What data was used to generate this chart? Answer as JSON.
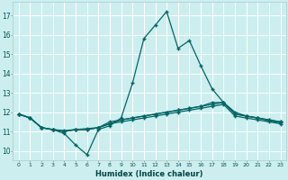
{
  "title": "",
  "xlabel": "Humidex (Indice chaleur)",
  "bg_color": "#cceeee",
  "line_color": "#006666",
  "grid_color": "#ffffff",
  "xlim": [
    -0.5,
    23.5
  ],
  "ylim": [
    9.5,
    17.7
  ],
  "xticks": [
    0,
    1,
    2,
    3,
    4,
    5,
    6,
    7,
    8,
    9,
    10,
    11,
    12,
    13,
    14,
    15,
    16,
    17,
    18,
    19,
    20,
    21,
    22,
    23
  ],
  "yticks": [
    10,
    11,
    12,
    13,
    14,
    15,
    16,
    17
  ],
  "series": [
    [
      11.9,
      11.7,
      11.2,
      11.1,
      10.9,
      10.3,
      9.8,
      11.1,
      11.3,
      11.7,
      13.5,
      15.8,
      16.5,
      17.2,
      15.3,
      15.7,
      14.4,
      13.2,
      12.5,
      11.9,
      11.8,
      11.7,
      11.6,
      11.5
    ],
    [
      11.9,
      11.7,
      11.2,
      11.1,
      11.05,
      11.1,
      11.15,
      11.2,
      11.5,
      11.6,
      11.7,
      11.8,
      11.9,
      12.0,
      12.1,
      12.2,
      12.3,
      12.5,
      12.5,
      12.0,
      11.8,
      11.7,
      11.6,
      11.5
    ],
    [
      11.9,
      11.7,
      11.2,
      11.1,
      11.0,
      11.1,
      11.1,
      11.2,
      11.4,
      11.6,
      11.7,
      11.8,
      11.9,
      12.0,
      12.1,
      12.2,
      12.3,
      12.4,
      12.5,
      11.9,
      11.8,
      11.7,
      11.55,
      11.45
    ],
    [
      11.9,
      11.7,
      11.2,
      11.1,
      11.0,
      11.1,
      11.1,
      11.2,
      11.4,
      11.5,
      11.6,
      11.7,
      11.8,
      11.9,
      12.0,
      12.1,
      12.2,
      12.3,
      12.4,
      11.8,
      11.7,
      11.6,
      11.5,
      11.4
    ]
  ]
}
